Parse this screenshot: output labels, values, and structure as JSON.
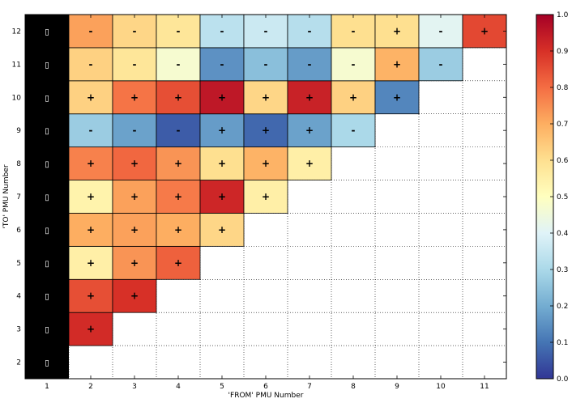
{
  "chart_data": {
    "type": "heatmap",
    "title": "",
    "xlabel": "'FROM' PMU Number",
    "ylabel": "'TO' PMU Number",
    "x_ticks": [
      "1",
      "2",
      "3",
      "4",
      "5",
      "6",
      "7",
      "8",
      "9",
      "10",
      "11"
    ],
    "y_ticks": [
      "2",
      "3",
      "4",
      "5",
      "6",
      "7",
      "8",
      "9",
      "10",
      "11",
      "12"
    ],
    "grid": true,
    "colormap": "RdYlBu_r",
    "color_range": [
      0.0,
      1.0
    ],
    "colorbar_ticks": [
      "0.0",
      "0.1",
      "0.2",
      "0.3",
      "0.4",
      "0.5",
      "0.6",
      "0.7",
      "0.8",
      "0.9",
      "1.0"
    ],
    "first_column_color": "#000000",
    "first_column_marker": "▯",
    "cells": [
      {
        "from": 2,
        "to": 3,
        "value": 0.91,
        "sign": "+"
      },
      {
        "from": 2,
        "to": 4,
        "value": 0.85,
        "sign": "+"
      },
      {
        "from": 3,
        "to": 4,
        "value": 0.9,
        "sign": "+"
      },
      {
        "from": 2,
        "to": 5,
        "value": 0.55,
        "sign": "+"
      },
      {
        "from": 3,
        "to": 5,
        "value": 0.74,
        "sign": "+"
      },
      {
        "from": 4,
        "to": 5,
        "value": 0.82,
        "sign": "+"
      },
      {
        "from": 2,
        "to": 6,
        "value": 0.7,
        "sign": "+"
      },
      {
        "from": 3,
        "to": 6,
        "value": 0.72,
        "sign": "+"
      },
      {
        "from": 4,
        "to": 6,
        "value": 0.7,
        "sign": "+"
      },
      {
        "from": 5,
        "to": 6,
        "value": 0.62,
        "sign": "+"
      },
      {
        "from": 2,
        "to": 7,
        "value": 0.54,
        "sign": "+"
      },
      {
        "from": 3,
        "to": 7,
        "value": 0.72,
        "sign": "+"
      },
      {
        "from": 4,
        "to": 7,
        "value": 0.78,
        "sign": "+"
      },
      {
        "from": 5,
        "to": 7,
        "value": 0.92,
        "sign": "+"
      },
      {
        "from": 6,
        "to": 7,
        "value": 0.55,
        "sign": "+"
      },
      {
        "from": 2,
        "to": 8,
        "value": 0.77,
        "sign": "+"
      },
      {
        "from": 3,
        "to": 8,
        "value": 0.81,
        "sign": "+"
      },
      {
        "from": 4,
        "to": 8,
        "value": 0.74,
        "sign": "+"
      },
      {
        "from": 5,
        "to": 8,
        "value": 0.6,
        "sign": "+"
      },
      {
        "from": 6,
        "to": 8,
        "value": 0.69,
        "sign": "+"
      },
      {
        "from": 7,
        "to": 8,
        "value": 0.55,
        "sign": "+"
      },
      {
        "from": 2,
        "to": 9,
        "value": 0.27,
        "sign": "-"
      },
      {
        "from": 3,
        "to": 9,
        "value": 0.18,
        "sign": "-"
      },
      {
        "from": 4,
        "to": 9,
        "value": 0.06,
        "sign": "-"
      },
      {
        "from": 5,
        "to": 9,
        "value": 0.17,
        "sign": "+"
      },
      {
        "from": 6,
        "to": 9,
        "value": 0.08,
        "sign": "+"
      },
      {
        "from": 7,
        "to": 9,
        "value": 0.18,
        "sign": "+"
      },
      {
        "from": 8,
        "to": 9,
        "value": 0.3,
        "sign": "-"
      },
      {
        "from": 2,
        "to": 10,
        "value": 0.63,
        "sign": "+"
      },
      {
        "from": 3,
        "to": 10,
        "value": 0.79,
        "sign": "+"
      },
      {
        "from": 4,
        "to": 10,
        "value": 0.85,
        "sign": "+"
      },
      {
        "from": 5,
        "to": 10,
        "value": 0.95,
        "sign": "+"
      },
      {
        "from": 6,
        "to": 10,
        "value": 0.62,
        "sign": "+"
      },
      {
        "from": 7,
        "to": 10,
        "value": 0.93,
        "sign": "+"
      },
      {
        "from": 8,
        "to": 10,
        "value": 0.63,
        "sign": "+"
      },
      {
        "from": 9,
        "to": 10,
        "value": 0.13,
        "sign": "+"
      },
      {
        "from": 2,
        "to": 11,
        "value": 0.63,
        "sign": "-"
      },
      {
        "from": 3,
        "to": 11,
        "value": 0.58,
        "sign": "-"
      },
      {
        "from": 4,
        "to": 11,
        "value": 0.47,
        "sign": "-"
      },
      {
        "from": 5,
        "to": 11,
        "value": 0.15,
        "sign": "-"
      },
      {
        "from": 6,
        "to": 11,
        "value": 0.24,
        "sign": "-"
      },
      {
        "from": 7,
        "to": 11,
        "value": 0.17,
        "sign": "-"
      },
      {
        "from": 8,
        "to": 11,
        "value": 0.47,
        "sign": "-"
      },
      {
        "from": 9,
        "to": 11,
        "value": 0.69,
        "sign": "+"
      },
      {
        "from": 10,
        "to": 11,
        "value": 0.27,
        "sign": "-"
      },
      {
        "from": 2,
        "to": 12,
        "value": 0.72,
        "sign": "-"
      },
      {
        "from": 3,
        "to": 12,
        "value": 0.62,
        "sign": "-"
      },
      {
        "from": 4,
        "to": 12,
        "value": 0.58,
        "sign": "-"
      },
      {
        "from": 5,
        "to": 12,
        "value": 0.33,
        "sign": "-"
      },
      {
        "from": 6,
        "to": 12,
        "value": 0.36,
        "sign": "-"
      },
      {
        "from": 7,
        "to": 12,
        "value": 0.32,
        "sign": "-"
      },
      {
        "from": 8,
        "to": 12,
        "value": 0.6,
        "sign": "-"
      },
      {
        "from": 9,
        "to": 12,
        "value": 0.6,
        "sign": "+"
      },
      {
        "from": 10,
        "to": 12,
        "value": 0.41,
        "sign": "-"
      },
      {
        "from": 11,
        "to": 12,
        "value": 0.86,
        "sign": "+"
      }
    ]
  }
}
